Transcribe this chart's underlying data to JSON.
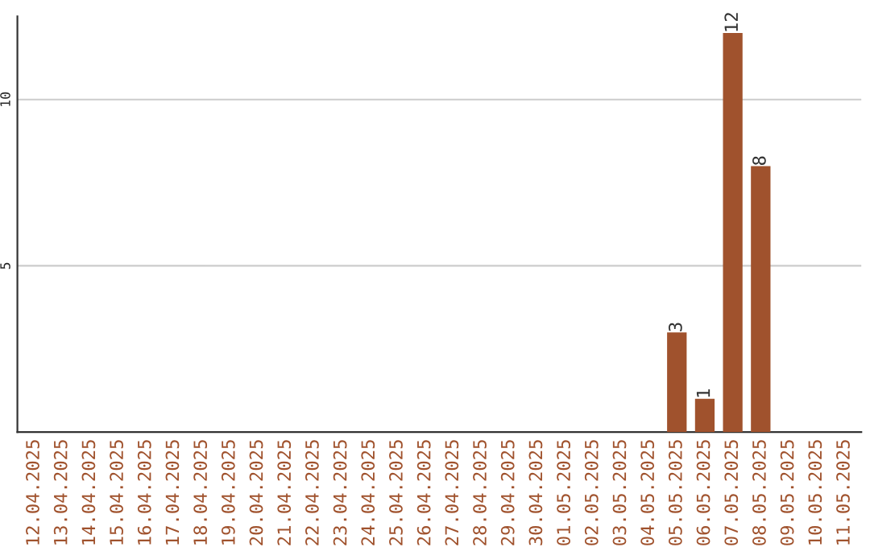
{
  "chart_data": {
    "type": "bar",
    "categories": [
      "12.04.2025",
      "13.04.2025",
      "14.04.2025",
      "15.04.2025",
      "16.04.2025",
      "17.04.2025",
      "18.04.2025",
      "19.04.2025",
      "20.04.2025",
      "21.04.2025",
      "22.04.2025",
      "23.04.2025",
      "24.04.2025",
      "25.04.2025",
      "26.04.2025",
      "27.04.2025",
      "28.04.2025",
      "29.04.2025",
      "30.04.2025",
      "01.05.2025",
      "02.05.2025",
      "03.05.2025",
      "04.05.2025",
      "05.05.2025",
      "06.05.2025",
      "07.05.2025",
      "08.05.2025",
      "09.05.2025",
      "10.05.2025",
      "11.05.2025"
    ],
    "values": [
      0,
      0,
      0,
      0,
      0,
      0,
      0,
      0,
      0,
      0,
      0,
      0,
      0,
      0,
      0,
      0,
      0,
      0,
      0,
      0,
      0,
      0,
      0,
      3,
      1,
      12,
      8,
      0,
      0,
      0
    ],
    "value_labels": [
      null,
      null,
      null,
      null,
      null,
      null,
      null,
      null,
      null,
      null,
      null,
      null,
      null,
      null,
      null,
      null,
      null,
      null,
      null,
      null,
      null,
      null,
      null,
      "3",
      "1",
      "12",
      "8",
      null,
      null,
      null
    ],
    "color": "#a0522d",
    "ylim": [
      0,
      12.5
    ],
    "yticks": [
      5,
      10
    ],
    "grid": "y",
    "legend": false
  }
}
